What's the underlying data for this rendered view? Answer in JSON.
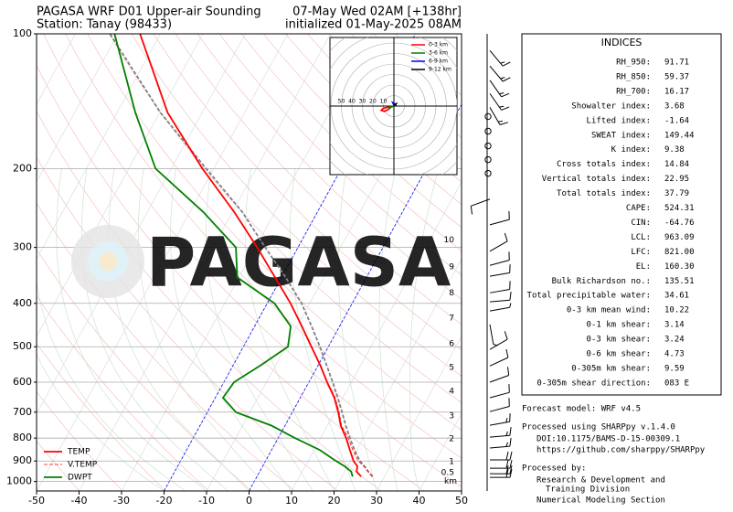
{
  "header": {
    "title": "PAGASA WRF D01 Upper-air Sounding",
    "station": "Station: Tanay (98433)",
    "valid": "07-May Wed 02AM [+138hr]",
    "initialized": "initialized 01-May-2025 08AM"
  },
  "chart_data": {
    "type": "skewt",
    "pressure": [
      975,
      950,
      925,
      900,
      850,
      800,
      750,
      700,
      650,
      600,
      550,
      500,
      450,
      400,
      350,
      300,
      250,
      200,
      150,
      100
    ],
    "series": [
      {
        "name": "TEMP",
        "color": "red",
        "style": "solid",
        "values": [
          24.5,
          22.8,
          22.3,
          20.7,
          18.4,
          16,
          13.1,
          10.8,
          8,
          4.3,
          0.5,
          -4,
          -8.9,
          -14.5,
          -21.5,
          -29.6,
          -39.6,
          -52.7,
          -68.1,
          -84.8
        ]
      },
      {
        "name": "V.TEMP",
        "color": "red",
        "style": "dashed",
        "values": [
          27.2,
          25.5,
          23.8,
          21.8,
          19.1,
          16.5,
          13.3,
          11,
          8.2,
          4.4,
          0.6,
          -3.9,
          -8.8,
          -14.5,
          -21.5,
          -29.6,
          -39.6,
          -52.7,
          -68.1,
          -84.8
        ]
      },
      {
        "name": "DWPT",
        "color": "green",
        "style": "solid",
        "values": [
          22.5,
          21.5,
          19.3,
          16.6,
          11.3,
          4,
          -3.2,
          -13.3,
          -18.2,
          -17.6,
          -13.5,
          -9.5,
          -11.5,
          -18.3,
          -30.4,
          -34.6,
          -46.9,
          -63.7,
          -75.7,
          -90.8
        ]
      }
    ],
    "parcel": {
      "color": "gray",
      "style": "dashed",
      "values": [
        27.2,
        25.5,
        24,
        22.2,
        19.5,
        16.9,
        14.3,
        11.7,
        8.8,
        5.6,
        2,
        -2,
        -6.6,
        -11.9,
        -19,
        -27.7,
        -37.7,
        -51.8,
        -69.8,
        -91.9
      ]
    },
    "xlim": [
      -50,
      50
    ],
    "xticks": [
      -50,
      -40,
      -30,
      -20,
      -10,
      0,
      10,
      20,
      30,
      40,
      50
    ],
    "ylim": [
      1050,
      100
    ],
    "yticks": [
      100,
      200,
      300,
      400,
      500,
      600,
      700,
      800,
      900,
      1000
    ],
    "log_y": true,
    "grid": true,
    "legend": "lower left",
    "isotherm_highlight": [
      -20,
      0
    ],
    "highlight_color": "blue",
    "height_km": [
      10,
      9,
      8,
      7,
      6,
      5,
      4,
      3,
      2,
      1,
      0.5
    ],
    "height_pressure": [
      289,
      332,
      379,
      432,
      492,
      557,
      629,
      714,
      804,
      904,
      956
    ],
    "height_unit": "km",
    "wind": {
      "pressure": [
        109,
        118,
        127,
        136,
        146,
        153,
        165,
        178,
        191,
        205,
        234,
        267,
        306,
        329,
        348,
        379,
        397,
        416,
        446,
        507,
        552,
        600,
        650,
        698,
        749,
        796,
        842,
        895,
        934,
        961,
        979
      ],
      "speed": [
        15,
        15,
        15,
        15,
        15,
        0,
        0,
        0,
        0,
        0,
        10,
        10,
        10,
        10,
        10,
        10,
        10,
        5,
        5,
        10,
        10,
        10,
        10,
        10,
        15,
        15,
        15,
        20,
        20,
        20,
        20
      ],
      "direction": [
        140,
        140,
        145,
        145,
        150,
        0,
        0,
        0,
        0,
        0,
        250,
        75,
        60,
        75,
        80,
        80,
        85,
        80,
        170,
        60,
        65,
        70,
        75,
        75,
        80,
        85,
        85,
        90,
        90,
        90,
        90
      ]
    },
    "watermark": "PAGASA"
  },
  "hodograph": {
    "ring_labels": [
      10,
      20,
      30,
      40,
      50
    ],
    "series": [
      {
        "name": "0-3 km",
        "color": "red",
        "u": [
          0,
          -5,
          -10,
          -12,
          -9,
          -5
        ],
        "v": [
          0,
          -1,
          -2,
          -4,
          -5,
          -3
        ]
      },
      {
        "name": "3-6 km",
        "color": "green",
        "u": [
          -5,
          -3,
          0
        ],
        "v": [
          -3,
          -1,
          0
        ]
      },
      {
        "name": "6-9 km",
        "color": "blue",
        "u": [
          0,
          1,
          -1,
          0
        ],
        "v": [
          0,
          2,
          3,
          1
        ]
      },
      {
        "name": "9-12 km",
        "color": "black",
        "u": [
          0,
          2,
          1
        ],
        "v": [
          1,
          2,
          0
        ]
      }
    ]
  },
  "indices": {
    "title": "INDICES",
    "rows": [
      [
        "RH_950:",
        91.71
      ],
      [
        "RH_850:",
        59.37
      ],
      [
        "RH_700:",
        16.17
      ],
      [
        "Showalter index:",
        3.68
      ],
      [
        "Lifted index:",
        -1.64
      ],
      [
        "SWEAT index:",
        149.44
      ],
      [
        "K index:",
        9.38
      ],
      [
        "Cross totals index:",
        14.84
      ],
      [
        "Vertical totals index:",
        22.95
      ],
      [
        "Total totals index:",
        37.79
      ],
      [
        "CAPE:",
        524.31
      ],
      [
        "CIN:",
        -64.76
      ],
      [
        "LCL:",
        963.09
      ],
      [
        "LFC:",
        "821.00"
      ],
      [
        "EL:",
        "160.30"
      ],
      [
        "Bulk Richardson no.:",
        135.51
      ],
      [
        "Total precipitable water:",
        34.61
      ],
      [
        "0-3 km mean wind:",
        10.22
      ],
      [
        "0-1 km shear:",
        3.14
      ],
      [
        "0-3 km shear:",
        3.24
      ],
      [
        "0-6 km shear:",
        4.73
      ],
      [
        "0-305m km shear:",
        9.59
      ],
      [
        "0-305m shear direction:",
        "083 E"
      ]
    ]
  },
  "notes": [
    "Forecast model: WRF v4.5",
    "Processed using SHARPpy v.1.4.0",
    "DOI:10.1175/BAMS-D-15-00309.1",
    "https://github.com/sharppy/SHARPpy",
    "Processed by:",
    "Research & Development and",
    "Training Division",
    "Numerical Modeling Section"
  ]
}
